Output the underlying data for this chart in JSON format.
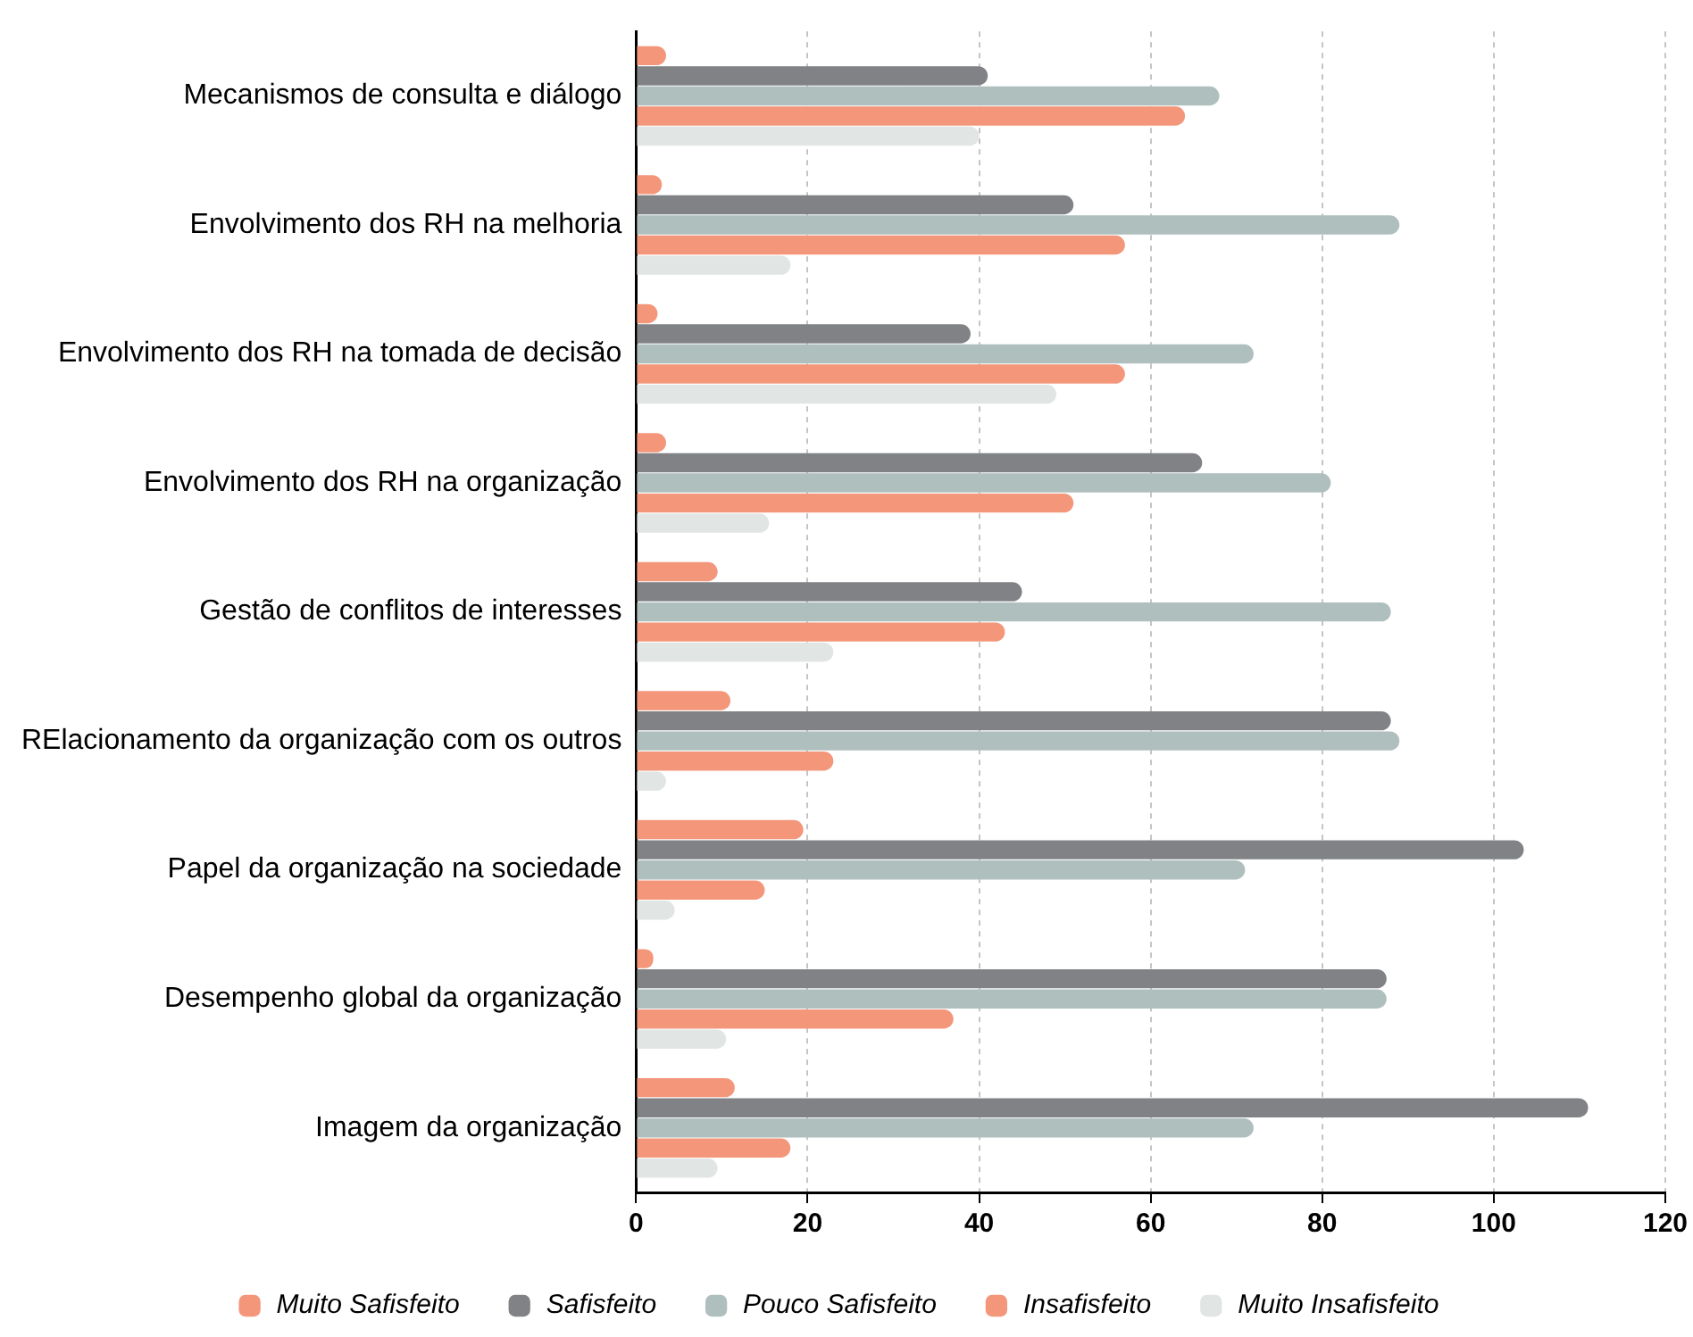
{
  "chart_data": {
    "type": "bar",
    "orientation": "horizontal",
    "categories": [
      "Mecanismos de consulta e diálogo",
      "Envolvimento dos RH na melhoria",
      "Envolvimento dos RH na tomada de decisão",
      "Envolvimento dos RH na organização",
      "Gestão de conflitos de interesses",
      "RElacionamento da organização com os outros",
      "Papel da organização na sociedade",
      "Desempenho global da organização",
      "Imagem da organização"
    ],
    "series": [
      {
        "name": "Muito Safisfeito",
        "color": "#f4967a",
        "values": [
          3.5,
          3,
          2.5,
          3.5,
          9.5,
          11,
          19.5,
          2,
          11.5
        ]
      },
      {
        "name": "Safisfeito",
        "color": "#808285",
        "values": [
          41,
          51,
          39,
          66,
          45,
          88,
          103.5,
          87.5,
          111
        ]
      },
      {
        "name": "Pouco Safisfeito",
        "color": "#afbfbe",
        "values": [
          68,
          89,
          72,
          81,
          88,
          89,
          71,
          87.5,
          72
        ]
      },
      {
        "name": "Insafisfeito",
        "color": "#f4967a",
        "values": [
          64,
          57,
          57,
          51,
          43,
          23,
          15,
          37,
          18
        ]
      },
      {
        "name": "Muito Insafisfeito",
        "color": "#e1e5e4",
        "values": [
          40,
          18,
          49,
          15.5,
          23,
          3.5,
          4.5,
          10.5,
          9.5
        ]
      }
    ],
    "xlim": [
      0,
      120
    ],
    "xticks": [
      0,
      20,
      40,
      60,
      80,
      100,
      120
    ],
    "grid": "x",
    "legend": "bottom"
  }
}
